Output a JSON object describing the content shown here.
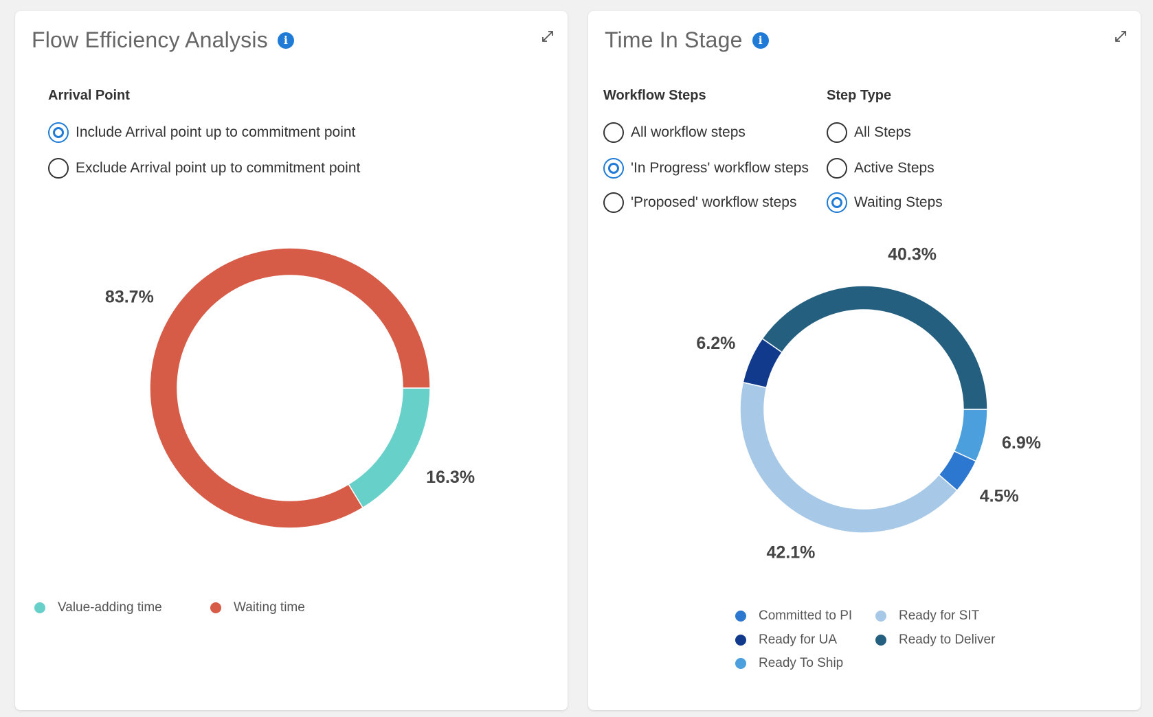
{
  "colors": {
    "accent": "#1f7bd6",
    "value_adding": "#67d0c8",
    "waiting": "#d65c48",
    "committed_to_pi": "#2c78d0",
    "ready_for_ua": "#123a8c",
    "ready_to_ship": "#4a9fdc",
    "ready_for_sit": "#a7c9e7",
    "ready_to_deliver": "#245f80"
  },
  "left": {
    "title": "Flow Efficiency Analysis",
    "group_label": "Arrival Point",
    "options": [
      {
        "label": "Include Arrival point up to commitment point",
        "checked": true
      },
      {
        "label": "Exclude Arrival point up to commitment point",
        "checked": false
      }
    ],
    "legend": [
      {
        "label": "Value-adding time",
        "color": "#67d0c8"
      },
      {
        "label": "Waiting time",
        "color": "#d65c48"
      }
    ]
  },
  "right": {
    "title": "Time In Stage",
    "workflow_label": "Workflow Steps",
    "workflow_options": [
      {
        "label": "All workflow steps",
        "checked": false
      },
      {
        "label": "'In Progress' workflow steps",
        "checked": true
      },
      {
        "label": "'Proposed' workflow steps",
        "checked": false
      }
    ],
    "steptype_label": "Step Type",
    "steptype_options": [
      {
        "label": "All Steps",
        "checked": false
      },
      {
        "label": "Active Steps",
        "checked": false
      },
      {
        "label": "Waiting Steps",
        "checked": true
      }
    ],
    "legend": [
      {
        "label": "Committed to PI",
        "color": "#2c78d0"
      },
      {
        "label": "Ready for SIT",
        "color": "#a7c9e7"
      },
      {
        "label": "Ready for UA",
        "color": "#123a8c"
      },
      {
        "label": "Ready to Deliver",
        "color": "#245f80"
      },
      {
        "label": "Ready To Ship",
        "color": "#4a9fdc"
      }
    ]
  },
  "chart_data": [
    {
      "type": "pie",
      "donut": true,
      "title": "Flow Efficiency Analysis",
      "slices": [
        {
          "name": "Value-adding time",
          "value": 16.3,
          "label": "16.3%",
          "color": "#67d0c8"
        },
        {
          "name": "Waiting time",
          "value": 83.7,
          "label": "83.7%",
          "color": "#d65c48"
        }
      ],
      "legend_position": "bottom-left"
    },
    {
      "type": "pie",
      "donut": true,
      "title": "Time In Stage",
      "slices": [
        {
          "name": "Ready To Ship",
          "value": 6.9,
          "label": "6.9%",
          "color": "#4a9fdc"
        },
        {
          "name": "Committed to PI",
          "value": 4.5,
          "label": "4.5%",
          "color": "#2c78d0"
        },
        {
          "name": "Ready for SIT",
          "value": 42.1,
          "label": "42.1%",
          "color": "#a7c9e7"
        },
        {
          "name": "Ready for UA",
          "value": 6.2,
          "label": "6.2%",
          "color": "#123a8c"
        },
        {
          "name": "Ready to Deliver",
          "value": 40.3,
          "label": "40.3%",
          "color": "#245f80"
        }
      ],
      "legend_position": "bottom"
    }
  ]
}
